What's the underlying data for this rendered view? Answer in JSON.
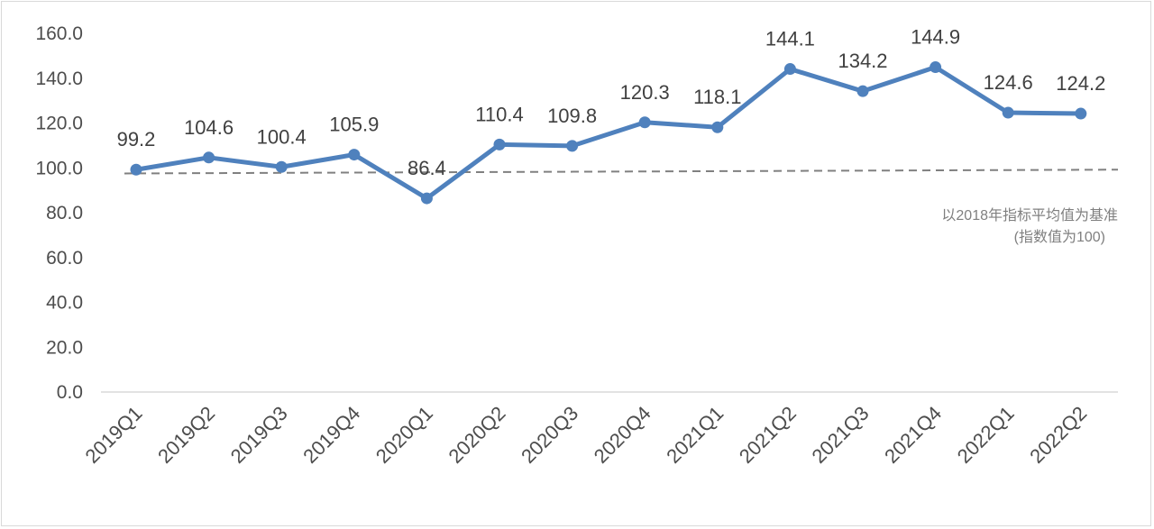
{
  "chart_data": {
    "type": "line",
    "categories": [
      "2019Q1",
      "2019Q2",
      "2019Q3",
      "2019Q4",
      "2020Q1",
      "2020Q2",
      "2020Q3",
      "2020Q4",
      "2021Q1",
      "2021Q2",
      "2021Q3",
      "2021Q4",
      "2022Q1",
      "2022Q2"
    ],
    "series": [
      {
        "values": [
          99.2,
          104.6,
          100.4,
          105.9,
          86.4,
          110.4,
          109.8,
          120.3,
          118.1,
          144.1,
          134.2,
          144.9,
          124.6,
          124.2
        ],
        "labels": [
          "99.2",
          "104.6",
          "100.4",
          "105.9",
          "86.4",
          "110.4",
          "109.8",
          "120.3",
          "118.1",
          "144.1",
          "134.2",
          "144.9",
          "124.6",
          "124.2"
        ],
        "color": "#4f81bd"
      }
    ],
    "y_ticks": [
      "0.0",
      "20.0",
      "40.0",
      "60.0",
      "80.0",
      "100.0",
      "120.0",
      "140.0",
      "160.0"
    ],
    "ylim": [
      0,
      160
    ],
    "baseline": {
      "start": 97.5,
      "end": 99.2,
      "color": "#808080",
      "style": "dashed"
    },
    "annotation": {
      "line1": "以2018年指标平均值为基准",
      "line2": "(指数值为100)"
    },
    "grid": false,
    "title": "",
    "xlabel": "",
    "ylabel": ""
  }
}
